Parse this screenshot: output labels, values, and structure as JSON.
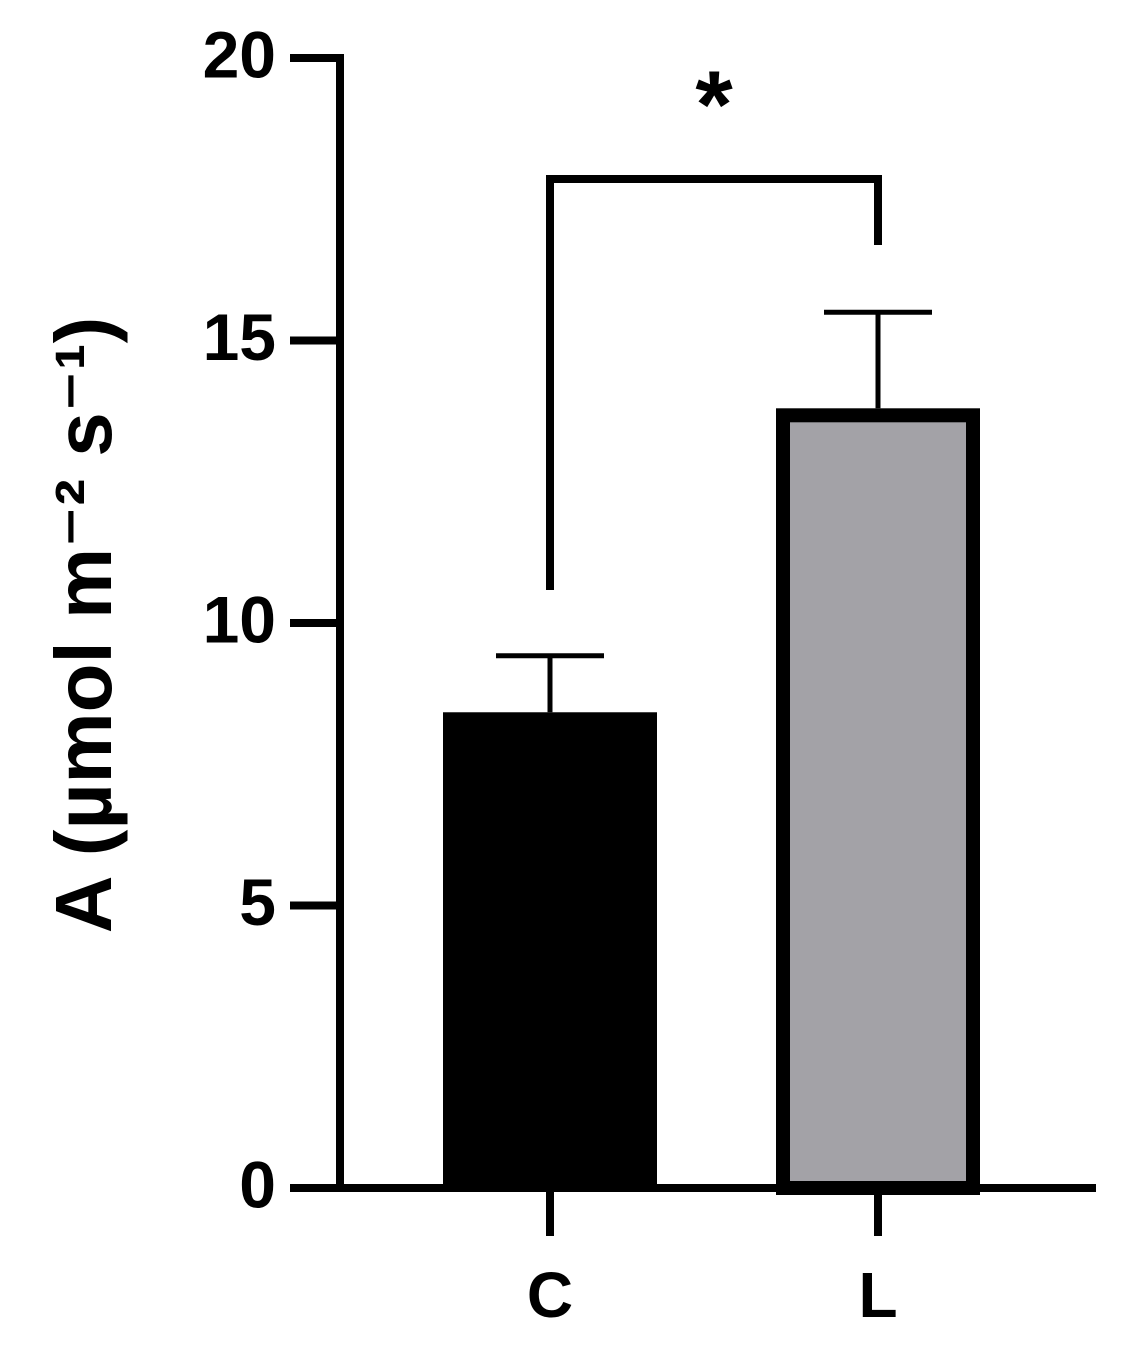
{
  "chart_data": {
    "type": "bar",
    "y_label": "A (µmol m⁻² s⁻¹)",
    "categories": [
      "C",
      "L"
    ],
    "values": [
      8.42,
      13.8
    ],
    "errors": [
      1.0,
      1.7
    ],
    "colors": [
      "#000000",
      "#a3a2a7"
    ],
    "annotation": "*",
    "ylim": [
      0,
      20
    ],
    "yticks": [
      0,
      5,
      10,
      15,
      20
    ],
    "grid": false
  }
}
